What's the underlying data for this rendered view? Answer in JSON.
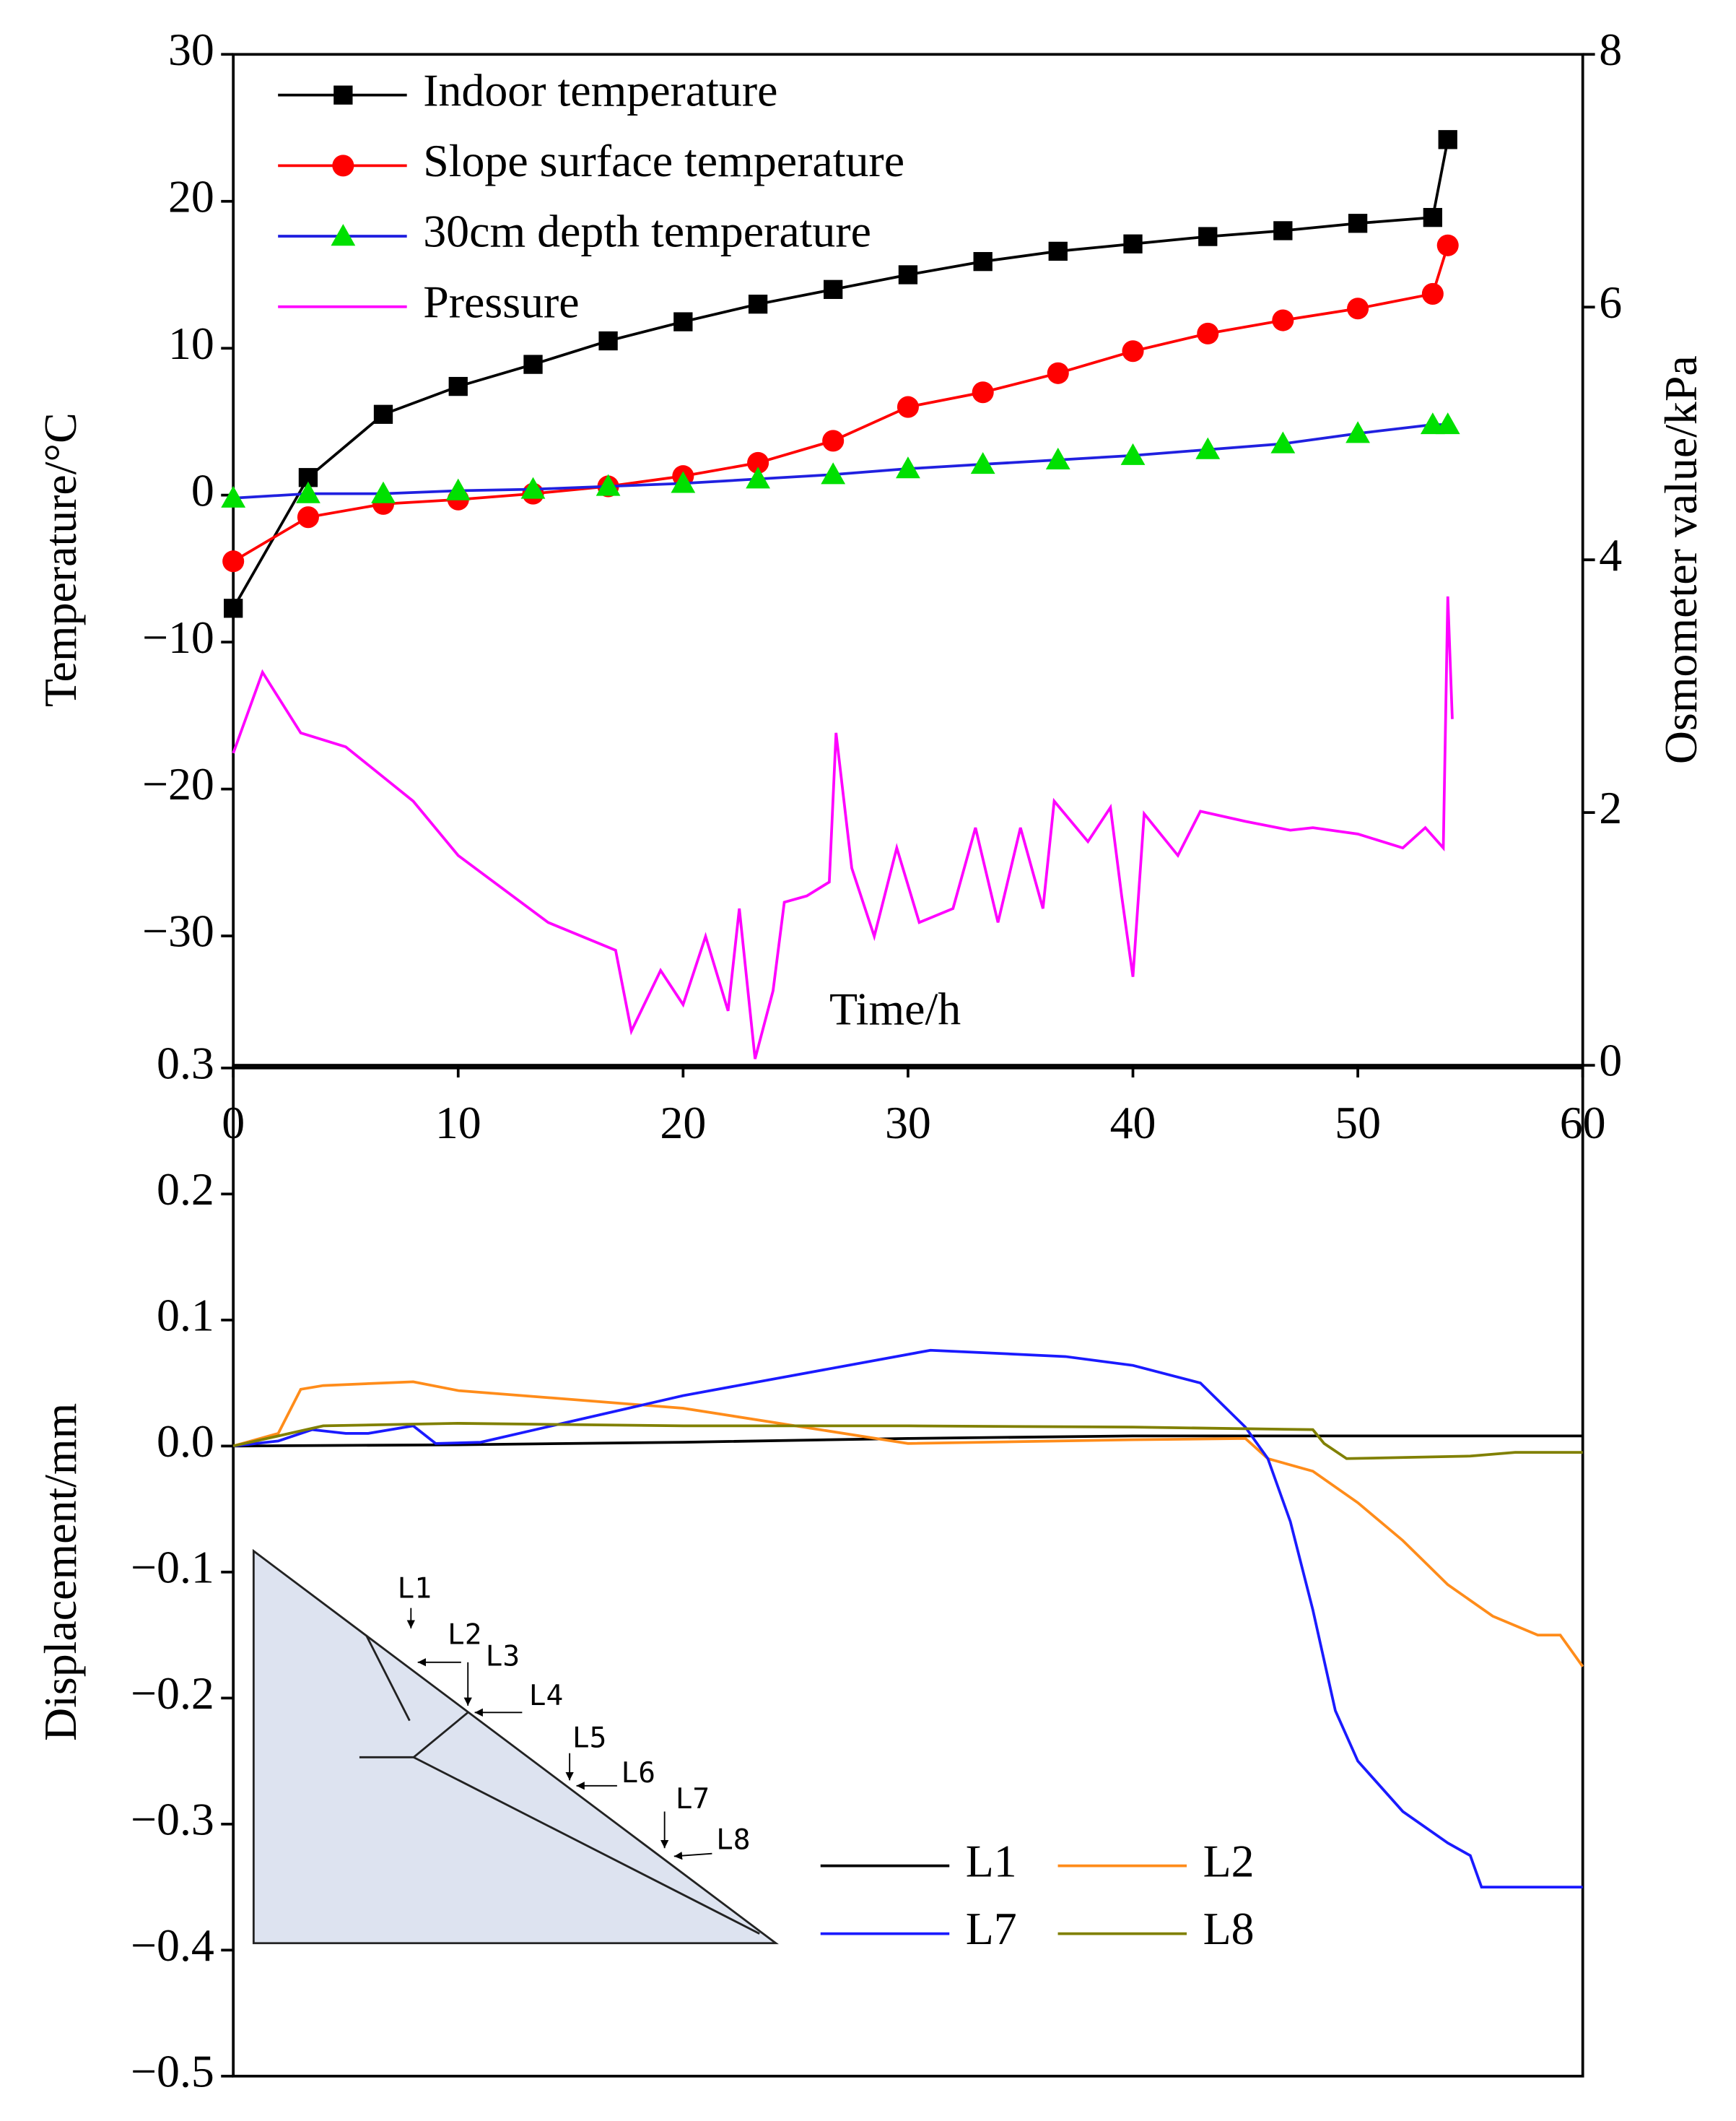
{
  "chart_data": [
    {
      "type": "line",
      "xlabel": "Time/h",
      "ylabel": "Temperature/°C",
      "y2label": "Osmometer value/kPa",
      "xlim": [
        0,
        60
      ],
      "xticks": [
        0,
        10,
        20,
        30,
        40,
        50,
        60
      ],
      "ylim": [
        -38.8,
        30
      ],
      "yticks": [
        30,
        20,
        10,
        0,
        {
          "value": -10,
          "label": "−10"
        },
        {
          "value": -20,
          "label": "−20"
        },
        {
          "value": -30,
          "label": "−30"
        }
      ],
      "y2lim": [
        0,
        8
      ],
      "y2ticks": [
        0,
        2,
        4,
        6,
        8
      ],
      "legend": "upper left",
      "series": [
        {
          "name": "Indoor temperature",
          "color": "#000000",
          "marker": "square",
          "marker_color": "#000000",
          "x": [
            0,
            3.33,
            6.67,
            10,
            13.33,
            16.67,
            20,
            23.33,
            26.67,
            30,
            33.33,
            36.67,
            40,
            43.33,
            46.67,
            50,
            53.33,
            54
          ],
          "values": [
            -7.7,
            1.2,
            5.5,
            7.4,
            8.9,
            10.5,
            11.8,
            13,
            14,
            15,
            15.9,
            16.6,
            17.1,
            17.6,
            18,
            18.5,
            18.9,
            24.2
          ]
        },
        {
          "name": "Slope surface temperature",
          "color": "#ff0000",
          "marker": "circle",
          "marker_color": "#ff0000",
          "x": [
            0,
            3.33,
            6.67,
            10,
            13.33,
            16.67,
            20,
            23.33,
            26.67,
            30,
            33.33,
            36.67,
            40,
            43.33,
            46.67,
            50,
            53.33,
            54
          ],
          "values": [
            -4.5,
            -1.5,
            -0.6,
            -0.3,
            0.1,
            0.6,
            1.3,
            2.2,
            3.7,
            6,
            7,
            8.3,
            9.8,
            11,
            11.9,
            12.7,
            13.7,
            17
          ]
        },
        {
          "name": "30cm depth temperature",
          "color": "#2020e0",
          "marker": "triangle",
          "marker_color": "#00e000",
          "x": [
            0,
            3.33,
            6.67,
            10,
            13.33,
            16.67,
            20,
            23.33,
            26.67,
            30,
            33.33,
            36.67,
            40,
            43.33,
            46.67,
            50,
            53.33,
            54
          ],
          "values": [
            -0.2,
            0.1,
            0.1,
            0.3,
            0.4,
            0.6,
            0.8,
            1.1,
            1.4,
            1.8,
            2.1,
            2.4,
            2.7,
            3.1,
            3.5,
            4.2,
            4.8,
            4.8
          ]
        },
        {
          "name": "Pressure",
          "color": "#ff00ff",
          "marker": "none",
          "axis": "y2",
          "x": [
            0,
            1.3,
            3,
            5,
            8,
            10,
            14,
            17,
            17.7,
            19,
            20,
            21,
            22,
            22.5,
            23.2,
            24,
            24.5,
            25.5,
            26.5,
            26.8,
            27.5,
            28.5,
            29.5,
            30.5,
            32,
            33,
            34,
            35,
            36,
            36.5,
            38,
            39,
            39.5,
            40,
            40.5,
            42,
            43,
            45,
            47,
            48,
            50,
            52,
            53,
            53.8,
            54,
            54.2
          ],
          "values": [
            2.47,
            3.11,
            2.63,
            2.52,
            2.09,
            1.66,
            1.13,
            0.91,
            0.27,
            0.75,
            0.48,
            1.02,
            0.43,
            1.24,
            0.05,
            0.59,
            1.29,
            1.34,
            1.45,
            2.63,
            1.56,
            1.02,
            1.72,
            1.13,
            1.24,
            1.88,
            1.13,
            1.88,
            1.24,
            2.09,
            1.77,
            2.04,
            1.34,
            0.7,
            1.99,
            1.66,
            2.01,
            1.93,
            1.86,
            1.88,
            1.83,
            1.72,
            1.88,
            1.72,
            3.71,
            2.74
          ]
        }
      ]
    },
    {
      "type": "line",
      "ylabel": "Displacement/mm",
      "xlim": [
        0,
        60
      ],
      "ylim": [
        -0.5,
        0.3
      ],
      "yticks": [
        0.3,
        0.2,
        0.1,
        {
          "value": 0,
          "label": "0.0"
        },
        {
          "value": -0.1,
          "label": "−0.1"
        },
        {
          "value": -0.2,
          "label": "−0.2"
        },
        {
          "value": -0.3,
          "label": "−0.3"
        },
        {
          "value": -0.4,
          "label": "−0.4"
        },
        {
          "value": -0.5,
          "label": "−0.5"
        }
      ],
      "legend": "lower right",
      "inset_labels": [
        "L1",
        "L2",
        "L3",
        "L4",
        "L5",
        "L6",
        "L7",
        "L8"
      ],
      "series": [
        {
          "name": "L1",
          "color": "#000000",
          "x": [
            0,
            10,
            20,
            30,
            40,
            50,
            60
          ],
          "values": [
            0,
            0.001,
            0.003,
            0.006,
            0.008,
            0.008,
            0.008
          ]
        },
        {
          "name": "L2",
          "color": "#ff8c1a",
          "x": [
            0,
            2,
            3,
            4,
            8,
            10,
            20,
            30,
            40,
            45,
            46,
            48,
            50,
            52,
            54,
            56,
            58,
            59,
            60
          ],
          "values": [
            0,
            0.01,
            0.045,
            0.048,
            0.051,
            0.044,
            0.03,
            0.002,
            0.005,
            0.006,
            -0.01,
            -0.02,
            -0.045,
            -0.075,
            -0.11,
            -0.135,
            -0.15,
            -0.15,
            -0.175
          ]
        },
        {
          "name": "L7",
          "color": "#1a1aff",
          "x": [
            0,
            2,
            3.5,
            5,
            6,
            8,
            9,
            11,
            20,
            31,
            37,
            40,
            43,
            45,
            46,
            47,
            48,
            49,
            50,
            52,
            54,
            55,
            55.5,
            60
          ],
          "values": [
            0,
            0.004,
            0.013,
            0.01,
            0.01,
            0.016,
            0.002,
            0.003,
            0.04,
            0.076,
            0.071,
            0.064,
            0.05,
            0.015,
            -0.01,
            -0.06,
            -0.13,
            -0.21,
            -0.25,
            -0.29,
            -0.315,
            -0.325,
            -0.35,
            -0.35
          ]
        },
        {
          "name": "L8",
          "color": "#808000",
          "x": [
            0,
            2.5,
            4,
            10,
            20,
            30,
            40,
            48,
            48.5,
            49.5,
            55,
            57,
            60
          ],
          "values": [
            0,
            0.01,
            0.016,
            0.018,
            0.016,
            0.016,
            0.015,
            0.013,
            0.002,
            -0.01,
            -0.008,
            -0.005,
            -0.005
          ]
        }
      ]
    }
  ]
}
